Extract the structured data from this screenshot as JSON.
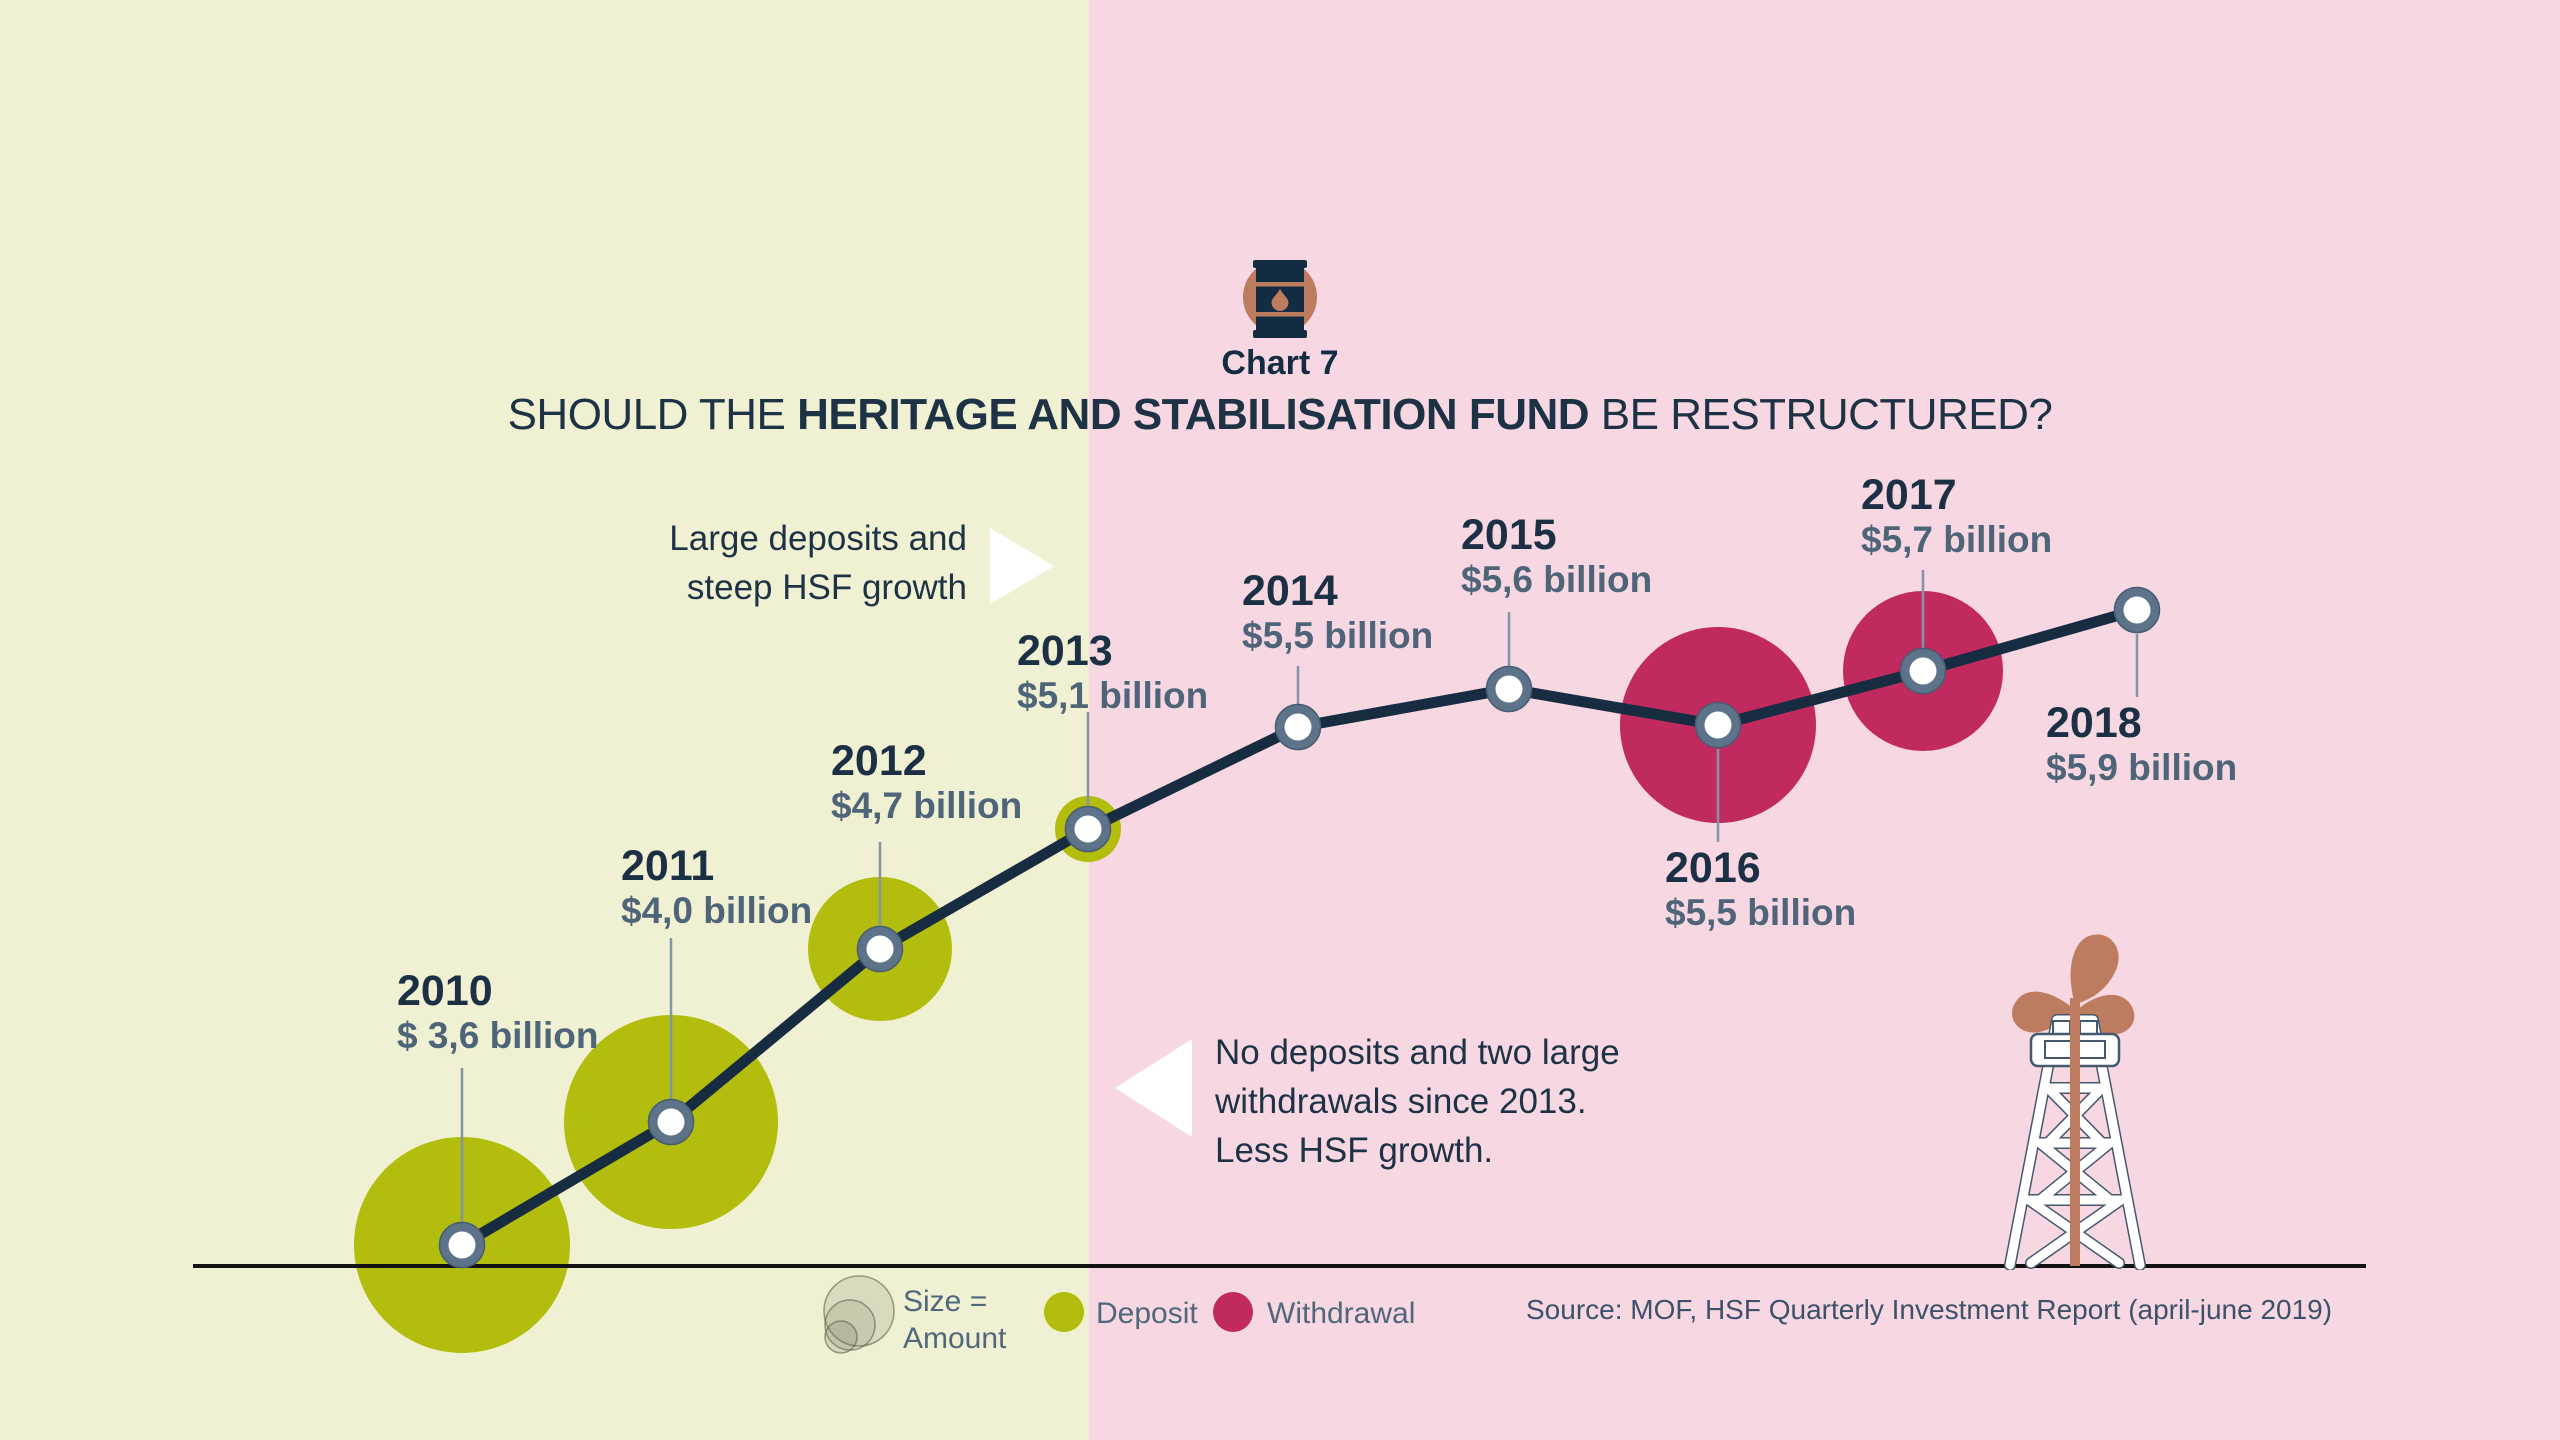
{
  "header": {
    "chart_label": "Chart 7",
    "title_prefix": "SHOULD THE ",
    "title_bold": "HERITAGE AND STABILISATION FUND",
    "title_suffix": " BE RESTRUCTURED?"
  },
  "chart_data": {
    "type": "line",
    "title": "SHOULD THE HERITAGE AND STABILISATION FUND BE RESTRUCTURED?",
    "x": [
      2010,
      2011,
      2012,
      2013,
      2014,
      2015,
      2016,
      2017,
      2018
    ],
    "fund_value_billion_usd": [
      3.6,
      4.0,
      4.7,
      5.1,
      5.5,
      5.6,
      5.5,
      5.7,
      5.9
    ],
    "value_labels": [
      "$ 3,6 billion",
      "$4,0 billion",
      "$4,7 billion",
      "$5,1 billion",
      "$5,5 billion",
      "$5,6 billion",
      "$5,5 billion",
      "$5,7 billion",
      "$5,9 billion"
    ],
    "bubbles": [
      {
        "year": 2010,
        "kind": "deposit",
        "radius_px": 108
      },
      {
        "year": 2011,
        "kind": "deposit",
        "radius_px": 107
      },
      {
        "year": 2012,
        "kind": "deposit",
        "radius_px": 72
      },
      {
        "year": 2013,
        "kind": "deposit",
        "radius_px": 33
      },
      {
        "year": 2016,
        "kind": "withdrawal",
        "radius_px": 98
      },
      {
        "year": 2017,
        "kind": "withdrawal",
        "radius_px": 80
      }
    ],
    "bubble_size_meaning": "Size = Amount",
    "legend_position": "bottom"
  },
  "annotations": {
    "deposits": {
      "line1": "Large deposits and",
      "line2": "steep HSF growth"
    },
    "withdrawals": {
      "line1": "No deposits and two large",
      "line2": "withdrawals since 2013.",
      "line3": "Less HSF growth."
    }
  },
  "legend": {
    "size_line1": "Size =",
    "size_line2": "Amount",
    "deposit": "Deposit",
    "withdrawal": "Withdrawal",
    "source": "Source: MOF, HSF Quarterly Investment Report (april-june 2019)"
  },
  "colors": {
    "background_deposit_era": "#f0f1d2",
    "background_withdrawal_era": "#f6d7e2",
    "deposit": "#b2bd0d",
    "withdrawal": "#c02a5e",
    "line": "#172c41",
    "baseline": "#121212",
    "marker_ring": "#5d7389",
    "leader": "#8494a5",
    "year_label": "#1b3044",
    "value_label": "#4e6478",
    "accent_copper": "#bd7b60"
  }
}
